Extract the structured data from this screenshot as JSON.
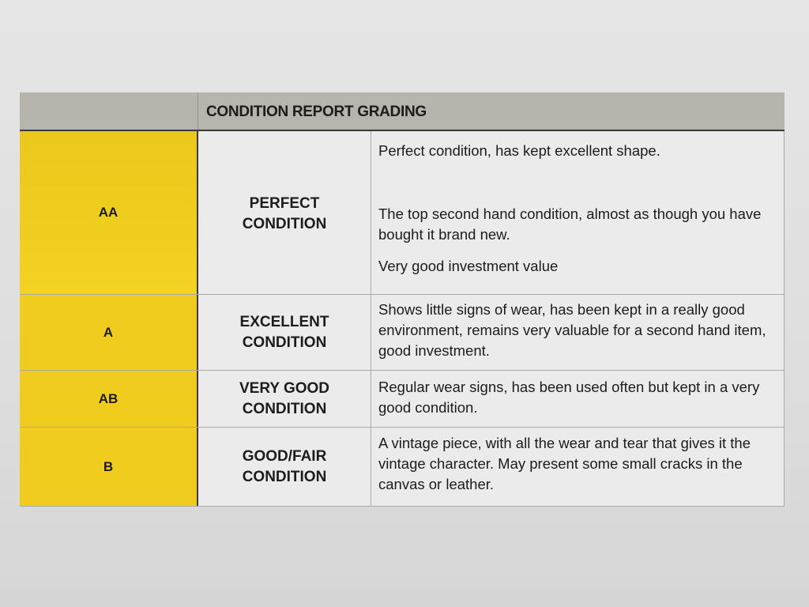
{
  "header": {
    "title": "CONDITION REPORT GRADING"
  },
  "colors": {
    "grade_column": "#efcc1d",
    "header": "#b7b3ad"
  },
  "rows": [
    {
      "grade": "AA",
      "name": "PERFECT CONDITION",
      "descriptions": [
        "Perfect condition, has kept excellent shape.",
        "The top second hand condition, almost as though you have bought it brand new.",
        "Very good investment value"
      ]
    },
    {
      "grade": "A",
      "name": "EXCELLENT CONDITION",
      "descriptions": [
        "Shows little signs of wear, has been kept in a really good environment, remains very valuable for a second hand item, good investment."
      ]
    },
    {
      "grade": "AB",
      "name": "VERY GOOD CONDITION",
      "descriptions": [
        "Regular wear signs, has been used often but kept in a very good condition."
      ]
    },
    {
      "grade": "B",
      "name": "GOOD/FAIR CONDITION",
      "descriptions": [
        "A vintage piece, with all the wear and tear that gives it the vintage character. May present some small cracks in the canvas or leather."
      ]
    }
  ]
}
